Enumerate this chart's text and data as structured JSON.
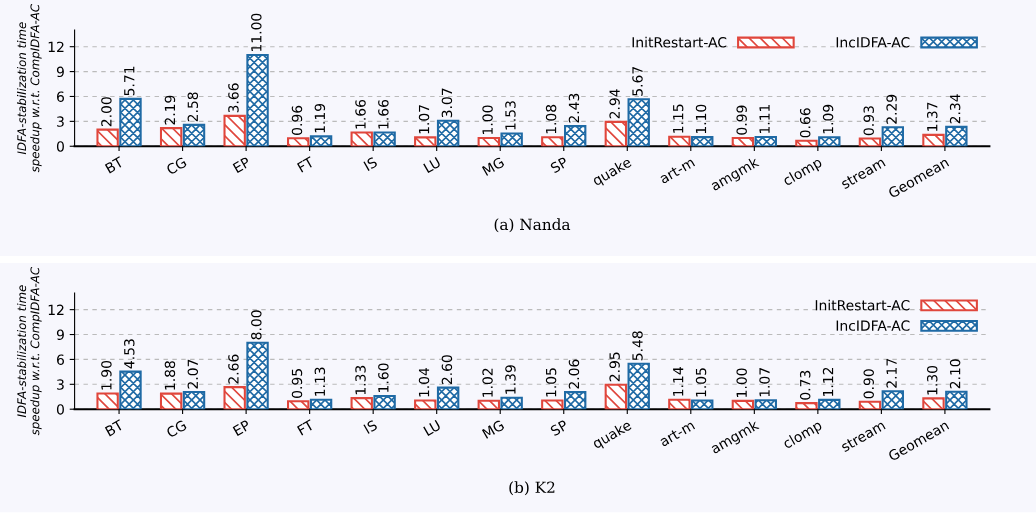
{
  "chart_data": [
    {
      "type": "bar",
      "ylabel": "IDFA-stabilization time\nspeedup w.r.t. CompIDFA-AC",
      "categories": [
        "BT",
        "CG",
        "EP",
        "FT",
        "IS",
        "LU",
        "MG",
        "SP",
        "quake",
        "art-m",
        "amgmk",
        "clomp",
        "stream",
        "Geomean"
      ],
      "series": [
        {
          "name": "InitRestart-AC",
          "color": "#e0463c",
          "values": [
            2.0,
            2.19,
            3.66,
            0.96,
            1.66,
            1.07,
            1.0,
            1.08,
            2.94,
            1.15,
            0.99,
            0.66,
            0.93,
            1.37
          ],
          "value_labels": [
            "2.00",
            "2.19",
            "3.66",
            "0.96",
            "1.66",
            "1.07",
            "1.00",
            "1.08",
            "2.94",
            "1.15",
            "0.99",
            "0.66",
            "0.93",
            "1.37"
          ]
        },
        {
          "name": "IncIDFA-AC",
          "color": "#1f6aa5",
          "values": [
            5.71,
            2.58,
            11.0,
            1.19,
            1.66,
            3.07,
            1.53,
            2.43,
            5.67,
            1.1,
            1.11,
            1.09,
            2.29,
            2.34
          ],
          "value_labels": [
            "5.71",
            "2.58",
            "11.00",
            "1.19",
            "1.66",
            "3.07",
            "1.53",
            "2.43",
            "5.67",
            "1.10",
            "1.11",
            "1.09",
            "2.29",
            "2.34"
          ]
        }
      ],
      "ylim": [
        0,
        14
      ],
      "yticks": [
        0,
        3,
        6,
        9,
        12
      ],
      "grid": "y",
      "legend": "top right",
      "annotations": [
        "(a) Nanda"
      ]
    },
    {
      "type": "bar",
      "ylabel": "IDFA-stabilization time\nspeedup w.r.t. CompIDFA-AC",
      "categories": [
        "BT",
        "CG",
        "EP",
        "FT",
        "IS",
        "LU",
        "MG",
        "SP",
        "quake",
        "art-m",
        "amgmk",
        "clomp",
        "stream",
        "Geomean"
      ],
      "series": [
        {
          "name": "InitRestart-AC",
          "color": "#e0463c",
          "values": [
            1.9,
            1.88,
            2.66,
            0.95,
            1.33,
            1.04,
            1.02,
            1.05,
            2.95,
            1.14,
            1.0,
            0.73,
            0.9,
            1.3
          ],
          "value_labels": [
            "1.90",
            "1.88",
            "2.66",
            "0.95",
            "1.33",
            "1.04",
            "1.02",
            "1.05",
            "2.95",
            "1.14",
            "1.00",
            "0.73",
            "0.90",
            "1.30"
          ]
        },
        {
          "name": "IncIDFA-AC",
          "color": "#1f6aa5",
          "values": [
            4.53,
            2.07,
            8.0,
            1.13,
            1.6,
            2.6,
            1.39,
            2.06,
            5.48,
            1.05,
            1.07,
            1.12,
            2.17,
            2.1
          ],
          "value_labels": [
            "4.53",
            "2.07",
            "8.00",
            "1.13",
            "1.60",
            "2.60",
            "1.39",
            "2.06",
            "5.48",
            "1.05",
            "1.07",
            "1.12",
            "2.17",
            "2.10"
          ]
        }
      ],
      "ylim": [
        0,
        14
      ],
      "yticks": [
        0,
        3,
        6,
        9,
        12
      ],
      "grid": "y",
      "legend": "top right",
      "annotations": [
        "(b) K2"
      ]
    }
  ]
}
